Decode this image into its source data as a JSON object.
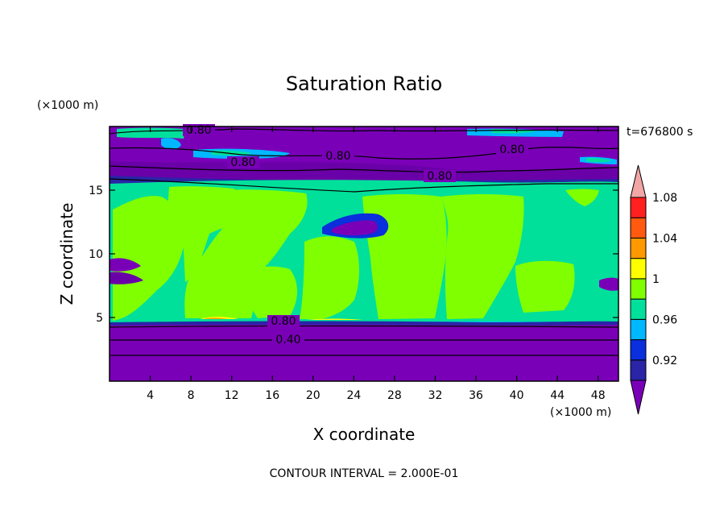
{
  "chart_data": {
    "type": "heatmap",
    "title": "Saturation Ratio",
    "xlabel": "X coordinate",
    "ylabel": "Z coordinate",
    "x_unit": "(×1000 m)",
    "y_unit": "(×1000 m)",
    "time_label": "t=676800 s",
    "footer": "CONTOUR INTERVAL = 2.000E-01",
    "xlim": [
      0,
      50
    ],
    "ylim": [
      0,
      20
    ],
    "x_ticks": [
      4,
      8,
      12,
      16,
      20,
      24,
      28,
      32,
      36,
      40,
      44,
      48
    ],
    "y_ticks": [
      5,
      10,
      15
    ],
    "contour_labels": [
      "0.80",
      "0.80",
      "0.80",
      "0.80",
      "0.80",
      "0.80",
      "0.40"
    ],
    "colorbar": {
      "labels": [
        "1.08",
        "1.04",
        "1",
        "0.96",
        "0.92"
      ],
      "colors": [
        "#7a00b8",
        "#2a24a6",
        "#0a2fdc",
        "#00b8ff",
        "#00e09a",
        "#80ff00",
        "#ffff00",
        "#ff9900",
        "#ff5a10",
        "#ff2020",
        "#f2a6a6"
      ]
    }
  }
}
